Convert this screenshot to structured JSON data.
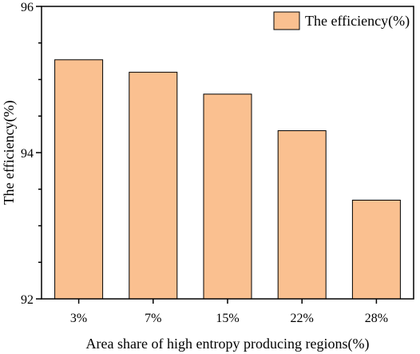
{
  "chart_data": {
    "type": "bar",
    "categories": [
      "3%",
      "7%",
      "15%",
      "22%",
      "28%"
    ],
    "series": [
      {
        "name": "The efficiency(%)",
        "values": [
          95.27,
          95.1,
          94.8,
          94.3,
          93.35
        ]
      }
    ],
    "xlabel": "Area share of high entropy producing regions(%)",
    "ylabel": "The efficiency(%)",
    "ylim": [
      92,
      96
    ],
    "yticks": [
      "92",
      "94",
      "96"
    ],
    "grid": false,
    "legend_position": "top-right",
    "colors": {
      "bar_fill": "#fac090",
      "bar_stroke": "#000000"
    }
  }
}
